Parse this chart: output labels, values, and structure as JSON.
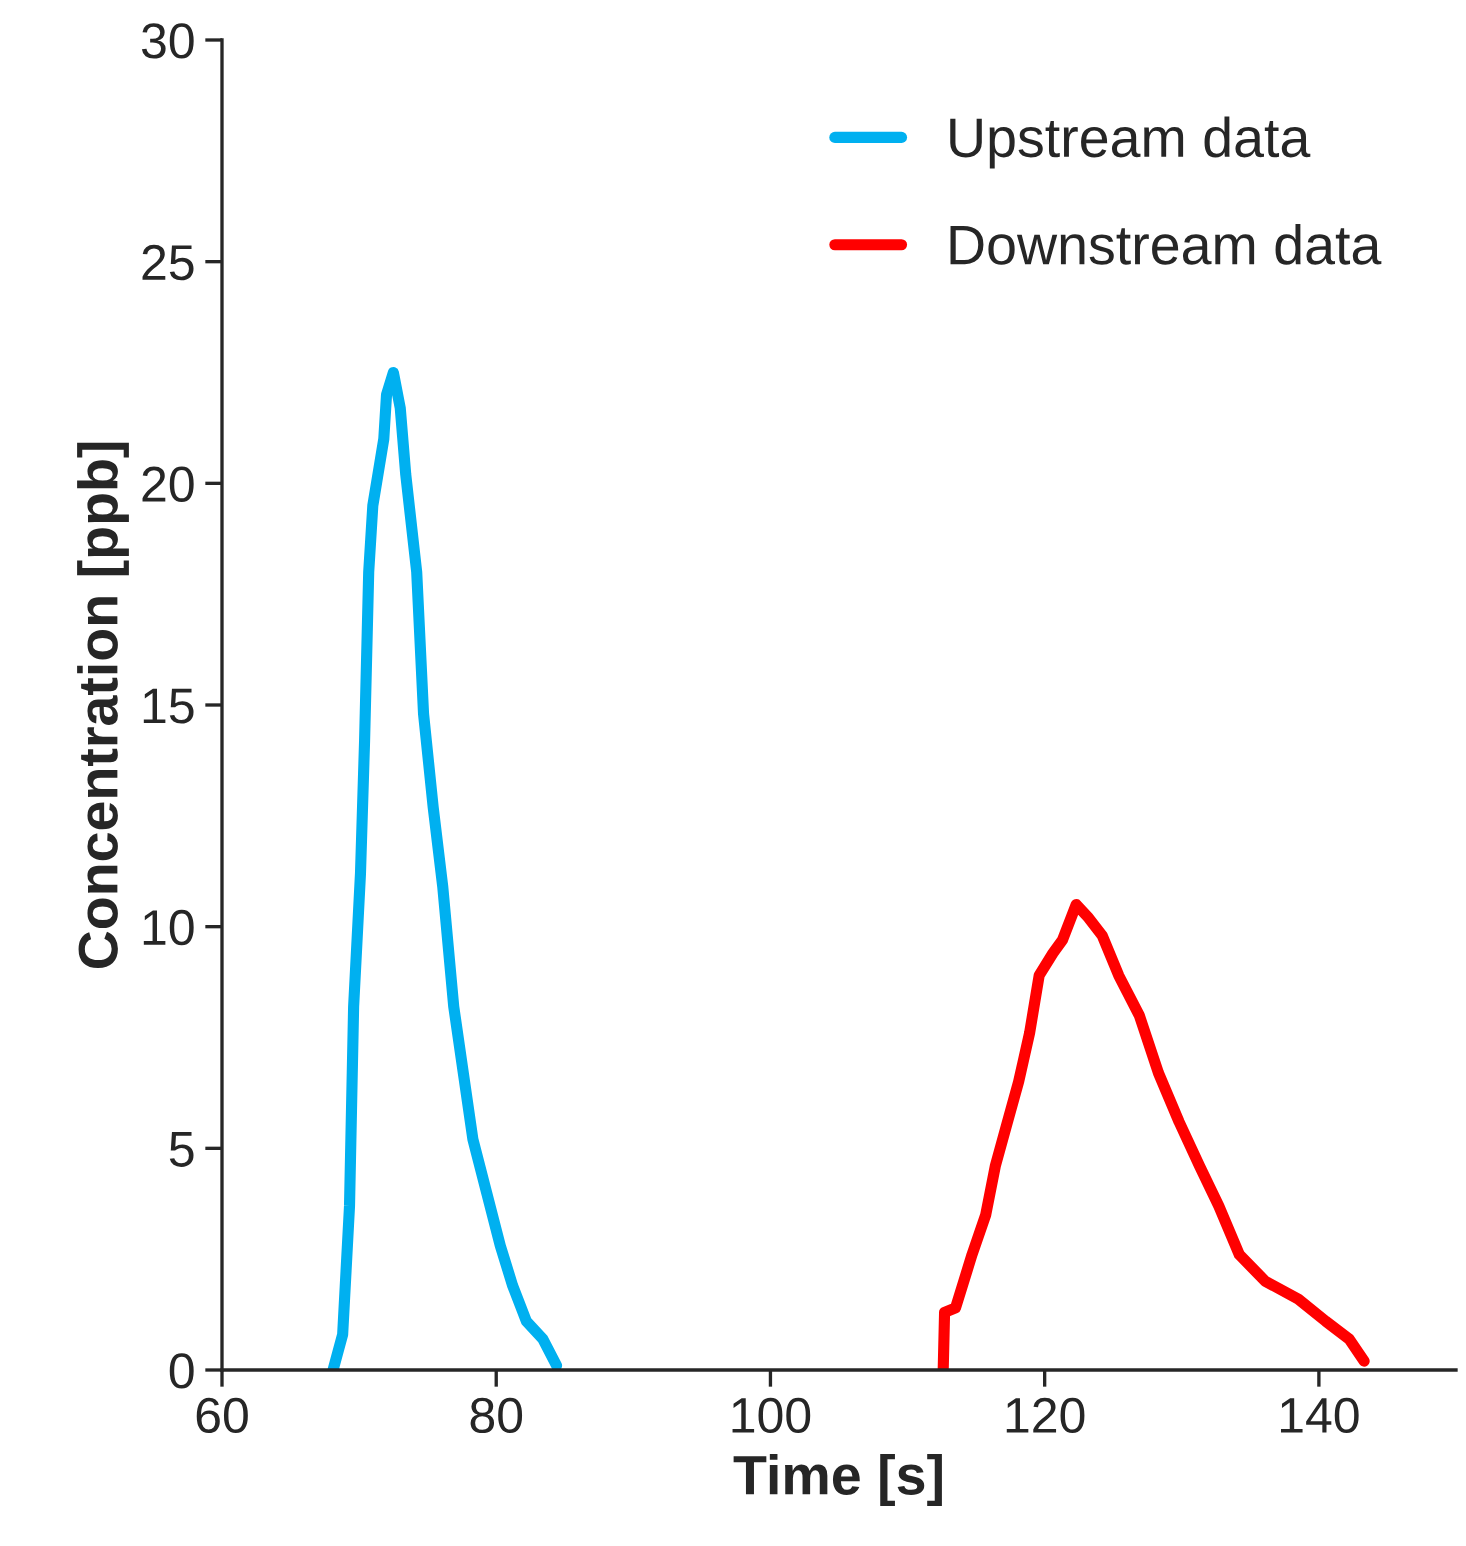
{
  "chart_data": {
    "type": "line",
    "xlabel": "Time [s]",
    "ylabel": "Concentration [ppb]",
    "xlim": [
      60,
      150
    ],
    "xticks": [
      60,
      80,
      100,
      120,
      140
    ],
    "ylim": [
      0,
      30
    ],
    "yticks": [
      0,
      5,
      10,
      15,
      20,
      25,
      30
    ],
    "grid": false,
    "legend": "top right",
    "marker": "none",
    "line_style": "solid",
    "series": [
      {
        "name": "Upstream data",
        "color": "#00b0f0",
        "x": [
          68.1,
          68.8,
          69.3,
          69.6,
          70.1,
          70.4,
          70.7,
          71.0,
          71.8,
          72.0,
          72.5,
          73.0,
          73.4,
          74.2,
          74.7,
          75.4,
          76.1,
          76.9,
          77.6,
          78.3,
          79.3,
          80.3,
          81.2,
          82.2,
          83.4,
          84.4
        ],
        "values": [
          0,
          0.8,
          3.7,
          8.2,
          11.2,
          14.2,
          18.0,
          19.5,
          21.0,
          22.0,
          22.5,
          21.7,
          20.2,
          18.0,
          14.8,
          12.7,
          10.9,
          8.2,
          6.7,
          5.2,
          4.0,
          2.8,
          1.9,
          1.1,
          0.7,
          0.1
        ]
      },
      {
        "name": "Downstream data",
        "color": "#ff0000",
        "x": [
          112.6,
          112.7,
          113.5,
          114.7,
          115.7,
          116.4,
          117.2,
          118.1,
          118.9,
          119.6,
          120.6,
          121.3,
          122.3,
          123.2,
          124.2,
          125.4,
          126.9,
          128.3,
          129.8,
          131.3,
          132.7,
          134.2,
          136.1,
          138.5,
          140.5,
          142.2,
          143.3
        ],
        "values": [
          0,
          1.3,
          1.4,
          2.6,
          3.5,
          4.6,
          5.5,
          6.5,
          7.6,
          8.9,
          9.4,
          9.7,
          10.5,
          10.2,
          9.8,
          8.9,
          8.0,
          6.7,
          5.6,
          4.6,
          3.7,
          2.6,
          2.0,
          1.6,
          1.1,
          0.7,
          0.2
        ]
      }
    ]
  }
}
